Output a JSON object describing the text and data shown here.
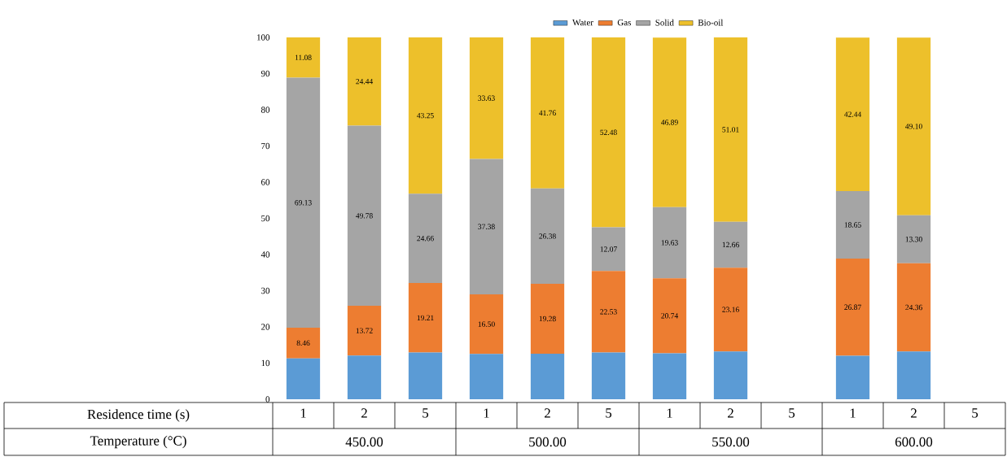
{
  "chart_data": {
    "type": "bar",
    "stacked": true,
    "categories": [
      "1",
      "2",
      "5",
      "1",
      "2",
      "5",
      "1",
      "2",
      "5",
      "1",
      "2",
      "5"
    ],
    "series": [
      {
        "name": "Water",
        "color": "#5b9bd5",
        "values": [
          11.3,
          12.1,
          12.9,
          12.5,
          12.6,
          12.9,
          12.7,
          13.2,
          null,
          12.0,
          13.2,
          null
        ]
      },
      {
        "name": "Gas",
        "color": "#ed7d31",
        "values": [
          8.46,
          13.72,
          19.21,
          16.5,
          19.28,
          22.53,
          20.74,
          23.16,
          null,
          26.87,
          24.36,
          null
        ],
        "value_labels": [
          "8.46",
          "13.72",
          "19.21",
          "16.50",
          "19.28",
          "22.53",
          "20.74",
          "23.16",
          null,
          "26.87",
          "24.36",
          null
        ]
      },
      {
        "name": "Solid",
        "color": "#a5a5a5",
        "values": [
          69.13,
          49.78,
          24.66,
          37.38,
          26.38,
          12.07,
          19.63,
          12.66,
          null,
          18.65,
          13.3,
          null
        ],
        "value_labels": [
          "69.13",
          "49.78",
          "24.66",
          "37.38",
          "26.38",
          "12.07",
          "19.63",
          "12.66",
          null,
          "18.65",
          "13.30",
          null
        ]
      },
      {
        "name": "Bio-oil",
        "color": "#edc02b",
        "values": [
          11.08,
          24.44,
          43.25,
          33.63,
          41.76,
          52.48,
          46.89,
          51.01,
          null,
          42.44,
          49.1,
          null
        ],
        "value_labels": [
          "11.08",
          "24.44",
          "43.25",
          "33.63",
          "41.76",
          "52.48",
          "46.89",
          "51.01",
          null,
          "42.44",
          "49.10",
          null
        ]
      }
    ],
    "ylim": [
      0,
      100
    ],
    "yticks": [
      0,
      10,
      20,
      30,
      40,
      50,
      60,
      70,
      80,
      90,
      100
    ],
    "legend": "top",
    "annotations": [
      "Residence time (s)",
      "Temperature (°C)",
      "450.00",
      "500.00",
      "550.00",
      "600.00"
    ]
  }
}
